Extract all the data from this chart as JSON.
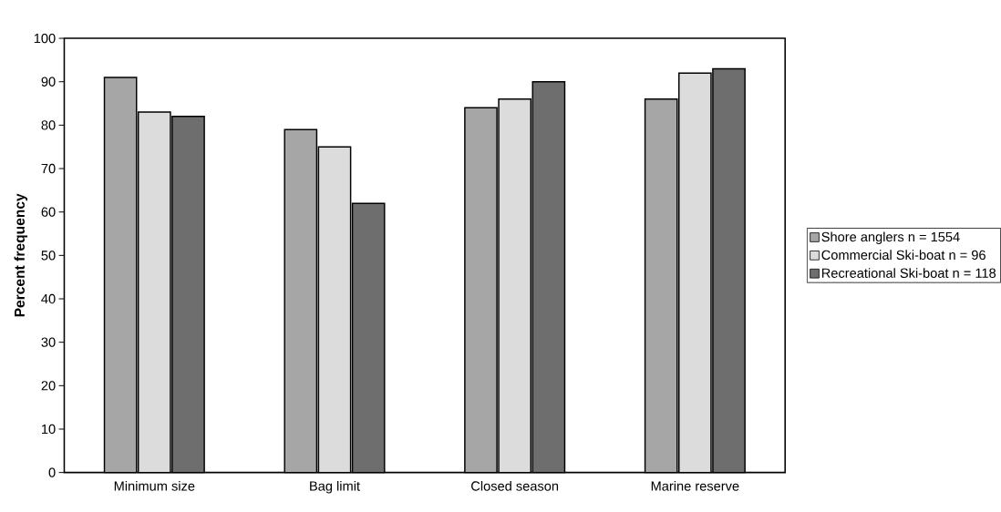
{
  "chart_data": {
    "type": "bar",
    "ylabel": "Percent frequency",
    "categories": [
      "Minimum size",
      "Bag limit",
      "Closed season",
      "Marine reserve"
    ],
    "series": [
      {
        "name": "Shore anglers n = 1554",
        "color": "#a6a6a6",
        "values": [
          91,
          79,
          84,
          86
        ]
      },
      {
        "name": "Commercial Ski-boat n = 96",
        "color": "#dcdcdc",
        "values": [
          83,
          75,
          86,
          92
        ]
      },
      {
        "name": "Recreational Ski-boat n = 118",
        "color": "#6e6e6e",
        "values": [
          82,
          62,
          90,
          93
        ]
      }
    ],
    "ylim": [
      0,
      100
    ],
    "yticks": [
      0,
      10,
      20,
      30,
      40,
      50,
      60,
      70,
      80,
      90,
      100
    ],
    "legend": "right",
    "grid": false
  }
}
